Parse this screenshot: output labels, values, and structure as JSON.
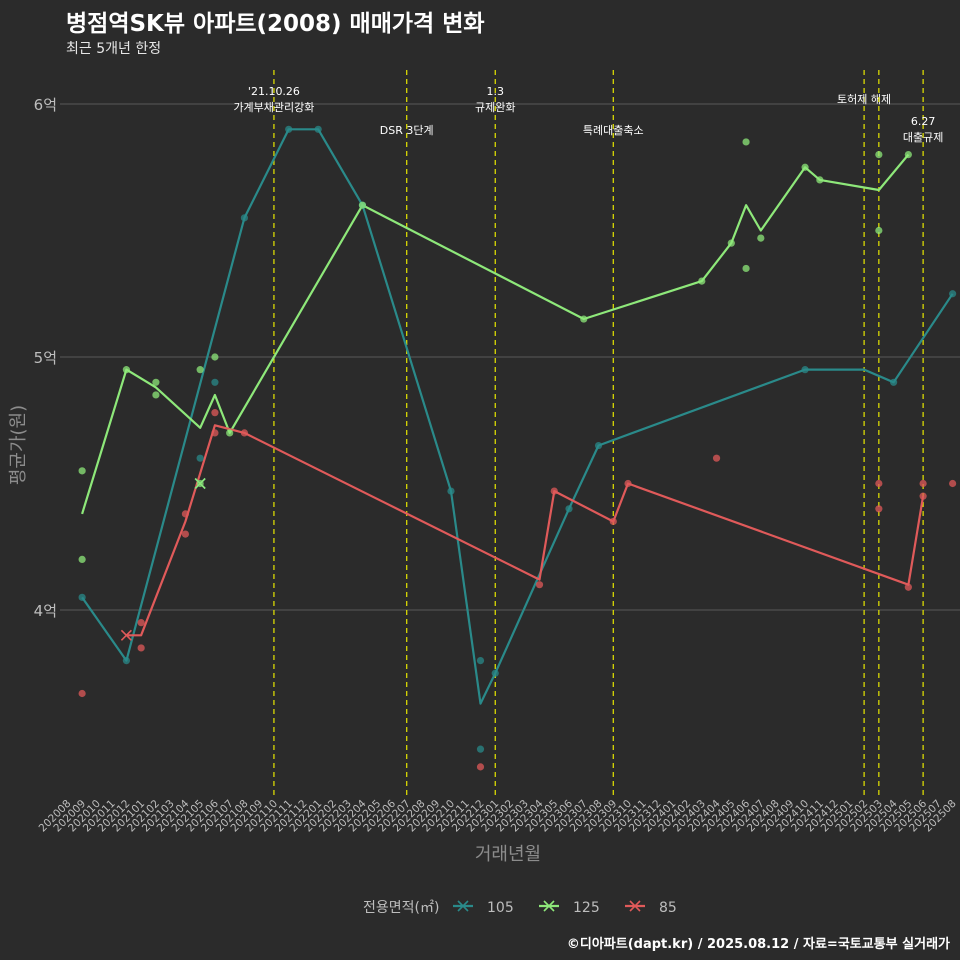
{
  "title": "병점역SK뷰 아파트(2008) 매매가격 변화",
  "subtitle": "최근 5개년 한정",
  "caption": "©디아파트(dapt.kr) / 2025.08.12 / 자료=국토교통부 실거래가",
  "colors": {
    "background": "#2b2b2b",
    "grid": "#5a5a5a",
    "text": "#bdbdbd",
    "event_line": "#e8e800",
    "s105": "#2a8a8a",
    "s125": "#8ee87a",
    "s85": "#e05a5a"
  },
  "chart_data": {
    "type": "line",
    "xlabel": "거래년월",
    "ylabel": "평균가(원)",
    "x_categories": [
      "202008",
      "202009",
      "202010",
      "202011",
      "202012",
      "202101",
      "202102",
      "202103",
      "202104",
      "202105",
      "202106",
      "202107",
      "202108",
      "202109",
      "202110",
      "202111",
      "202112",
      "202201",
      "202202",
      "202203",
      "202204",
      "202205",
      "202206",
      "202207",
      "202208",
      "202209",
      "202210",
      "202211",
      "202212",
      "202301",
      "202302",
      "202303",
      "202304",
      "202305",
      "202306",
      "202307",
      "202308",
      "202309",
      "202310",
      "202311",
      "202312",
      "202401",
      "202402",
      "202403",
      "202404",
      "202405",
      "202406",
      "202407",
      "202408",
      "202409",
      "202410",
      "202411",
      "202412",
      "202501",
      "202502",
      "202503",
      "202504",
      "202505",
      "202506",
      "202507",
      "202508"
    ],
    "y_ticks": [
      {
        "value": 4.0,
        "label": "4억"
      },
      {
        "value": 5.0,
        "label": "5억"
      },
      {
        "value": 6.0,
        "label": "6억"
      }
    ],
    "y_range": [
      3.3,
      6.2
    ],
    "y_unit": "억",
    "grid": true,
    "legend_position": "bottom",
    "legend_title": "전용면적(㎡)",
    "series": [
      {
        "name": "105",
        "color": "#2a8a8a",
        "line": [
          [
            "202009",
            4.05
          ],
          [
            "202012",
            3.8
          ],
          [
            "202108",
            5.55
          ],
          [
            "202111",
            5.9
          ],
          [
            "202201",
            5.9
          ],
          [
            "202204",
            5.6
          ],
          [
            "202210",
            4.47
          ],
          [
            "202212",
            3.63
          ],
          [
            "202301",
            3.75
          ],
          [
            "202306",
            4.4
          ],
          [
            "202308",
            4.65
          ],
          [
            "202410",
            4.95
          ],
          [
            "202502",
            4.95
          ],
          [
            "202504",
            4.9
          ],
          [
            "202508",
            5.25
          ]
        ],
        "points": [
          [
            "202009",
            4.05
          ],
          [
            "202012",
            3.8
          ],
          [
            "202105",
            4.6
          ],
          [
            "202106",
            4.9
          ],
          [
            "202108",
            5.55
          ],
          [
            "202111",
            5.9
          ],
          [
            "202201",
            5.9
          ],
          [
            "202204",
            5.6
          ],
          [
            "202210",
            4.47
          ],
          [
            "202212",
            3.8
          ],
          [
            "202212",
            3.45
          ],
          [
            "202301",
            3.75
          ],
          [
            "202306",
            4.4
          ],
          [
            "202308",
            4.65
          ],
          [
            "202410",
            4.95
          ],
          [
            "202504",
            4.9
          ],
          [
            "202508",
            5.25
          ]
        ]
      },
      {
        "name": "125",
        "color": "#8ee87a",
        "line": [
          [
            "202009",
            4.38
          ],
          [
            "202012",
            4.95
          ],
          [
            "202102",
            4.88
          ],
          [
            "202105",
            4.72
          ],
          [
            "202106",
            4.85
          ],
          [
            "202107",
            4.7
          ],
          [
            "202204",
            5.6
          ],
          [
            "202307",
            5.15
          ],
          [
            "202403",
            5.3
          ],
          [
            "202405",
            5.45
          ],
          [
            "202406",
            5.6
          ],
          [
            "202407",
            5.5
          ],
          [
            "202410",
            5.75
          ],
          [
            "202411",
            5.7
          ],
          [
            "202503",
            5.66
          ],
          [
            "202505",
            5.8
          ]
        ],
        "points": [
          [
            "202009",
            4.55
          ],
          [
            "202009",
            4.2
          ],
          [
            "202012",
            4.95
          ],
          [
            "202102",
            4.9
          ],
          [
            "202102",
            4.85
          ],
          [
            "202105",
            4.95
          ],
          [
            "202105",
            4.5
          ],
          [
            "202106",
            5.0
          ],
          [
            "202107",
            4.7
          ],
          [
            "202204",
            5.6
          ],
          [
            "202307",
            5.15
          ],
          [
            "202403",
            5.3
          ],
          [
            "202405",
            5.45
          ],
          [
            "202406",
            5.85
          ],
          [
            "202406",
            5.35
          ],
          [
            "202407",
            5.47
          ],
          [
            "202410",
            5.75
          ],
          [
            "202411",
            5.7
          ],
          [
            "202503",
            5.8
          ],
          [
            "202503",
            5.5
          ],
          [
            "202505",
            5.8
          ]
        ]
      },
      {
        "name": "85",
        "color": "#e05a5a",
        "line": [
          [
            "202012",
            3.9
          ],
          [
            "202101",
            3.9
          ],
          [
            "202104",
            4.35
          ],
          [
            "202106",
            4.73
          ],
          [
            "202108",
            4.7
          ],
          [
            "202304",
            4.12
          ],
          [
            "202305",
            4.47
          ],
          [
            "202309",
            4.35
          ],
          [
            "202310",
            4.5
          ],
          [
            "202505",
            4.1
          ],
          [
            "202506",
            4.45
          ]
        ],
        "points": [
          [
            "202009",
            3.67
          ],
          [
            "202101",
            3.95
          ],
          [
            "202101",
            3.85
          ],
          [
            "202104",
            4.38
          ],
          [
            "202104",
            4.3
          ],
          [
            "202106",
            4.78
          ],
          [
            "202106",
            4.7
          ],
          [
            "202108",
            4.7
          ],
          [
            "202212",
            3.38
          ],
          [
            "202304",
            4.1
          ],
          [
            "202305",
            4.47
          ],
          [
            "202309",
            4.35
          ],
          [
            "202310",
            4.5
          ],
          [
            "202404",
            4.6
          ],
          [
            "202503",
            4.5
          ],
          [
            "202503",
            4.4
          ],
          [
            "202505",
            4.09
          ],
          [
            "202506",
            4.5
          ],
          [
            "202506",
            4.45
          ],
          [
            "202508",
            4.5
          ]
        ]
      }
    ],
    "x_markers": [
      {
        "series": "105",
        "x": "202105",
        "y": 4.5
      },
      {
        "series": "125",
        "x": "202105",
        "y": 4.5
      },
      {
        "series": "85",
        "x": "202012",
        "y": 3.9
      }
    ],
    "events": [
      {
        "x": "202110",
        "lines": [
          "'21.10.26",
          "가계부채관리강화"
        ],
        "level": "high"
      },
      {
        "x": "202207",
        "lines": [
          "DSR 3단계"
        ],
        "level": "low"
      },
      {
        "x": "202301",
        "lines": [
          "1.3",
          "규제완화"
        ],
        "level": "high"
      },
      {
        "x": "202309",
        "lines": [
          "특례대출축소"
        ],
        "level": "low"
      },
      {
        "x": "202502",
        "lines": [
          "토허제 해제"
        ],
        "level": "mid"
      },
      {
        "x": "202503",
        "lines": [],
        "level": "none"
      },
      {
        "x": "202506",
        "lines": [
          "6.27",
          "대출규제"
        ],
        "level": "low2"
      }
    ]
  }
}
